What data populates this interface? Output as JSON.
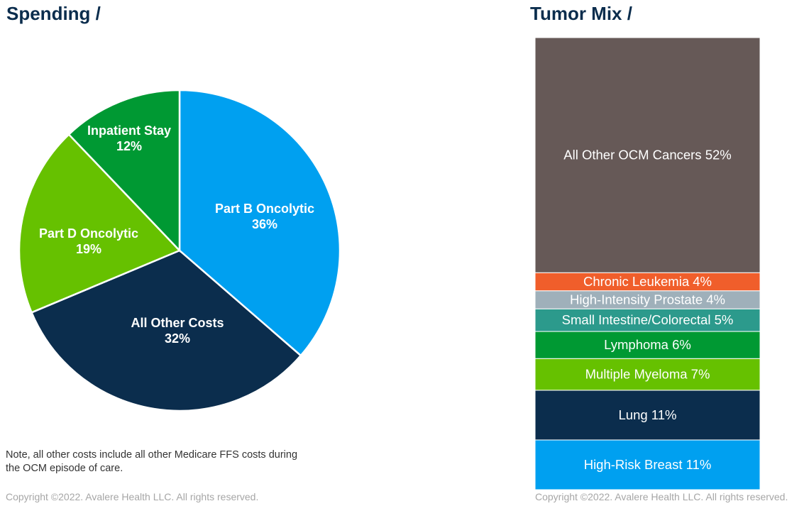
{
  "spending": {
    "title": "Spending /",
    "note": "Note, all other costs include all other Medicare FFS costs during the OCM episode of care.",
    "copyright": "Copyright ©2022. Avalere Health LLC. All rights reserved."
  },
  "tumor": {
    "title": "Tumor Mix /",
    "copyright": "Copyright ©2022. Avalere Health LLC. All rights reserved."
  },
  "chart_data": [
    {
      "type": "pie",
      "title": "Spending /",
      "slices": [
        {
          "label": "Part B Oncolytic",
          "value": 36,
          "value_label": "36%",
          "color": "#00a0f0"
        },
        {
          "label": "All Other Costs",
          "value": 32,
          "value_label": "32%",
          "color": "#0b2d4d"
        },
        {
          "label": "Part D Oncolytic",
          "value": 19,
          "value_label": "19%",
          "color": "#66c100"
        },
        {
          "label": "Inpatient Stay",
          "value": 12,
          "value_label": "12%",
          "color": "#009933"
        }
      ]
    },
    {
      "type": "bar",
      "subtype": "100% stacked",
      "title": "Tumor Mix /",
      "segments": [
        {
          "label": "High-Risk Breast 11%",
          "value": 11,
          "color": "#00a0f0"
        },
        {
          "label": "Lung 11%",
          "value": 11,
          "color": "#0b2d4d"
        },
        {
          "label": "Multiple Myeloma 7%",
          "value": 7,
          "color": "#66c100"
        },
        {
          "label": "Lymphoma 6%",
          "value": 6,
          "color": "#009933"
        },
        {
          "label": "Small Intestine/Colorectal 5%",
          "value": 5,
          "color": "#2c9a8c"
        },
        {
          "label": "High-Intensity Prostate 4%",
          "value": 4,
          "color": "#9fb0ba"
        },
        {
          "label": "Chronic Leukemia 4%",
          "value": 4,
          "color": "#f05e2b"
        },
        {
          "label": "All Other OCM Cancers 52%",
          "value": 52,
          "color": "#665957"
        }
      ]
    }
  ]
}
